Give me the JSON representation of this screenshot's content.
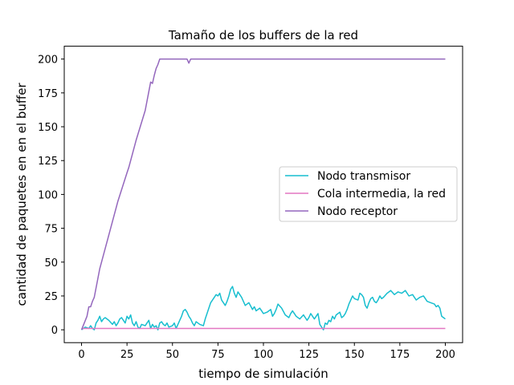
{
  "chart_data": {
    "type": "line",
    "title": "Tamaño de los buffers de la red",
    "xlabel": "tiempo de simulación",
    "ylabel": "cantidad de paquetes en en el buffer",
    "xlim": [
      -9.5,
      209.5
    ],
    "ylim": [
      -9.5,
      209.5
    ],
    "xticks": [
      0,
      25,
      50,
      75,
      100,
      125,
      150,
      175,
      200
    ],
    "yticks": [
      0,
      25,
      50,
      75,
      100,
      125,
      150,
      175,
      200
    ],
    "grid": false,
    "legend_position": "center-right",
    "series": [
      {
        "name": "Nodo transmisor",
        "color": "#17becf",
        "x": [
          0,
          2,
          4,
          5,
          6,
          7,
          8,
          9,
          10,
          11,
          12,
          13,
          15,
          17,
          18,
          19,
          20,
          21,
          22,
          23,
          24,
          25,
          26,
          27,
          28,
          29,
          30,
          31,
          32,
          33,
          35,
          36,
          37,
          38,
          39,
          40,
          41,
          42,
          43,
          44,
          45,
          46,
          47,
          48,
          50,
          51,
          52,
          53,
          54,
          55,
          56,
          57,
          58,
          59,
          60,
          61,
          62,
          63,
          65,
          67,
          68,
          69,
          70,
          71,
          72,
          73,
          74,
          75,
          76,
          77,
          78,
          79,
          80,
          81,
          82,
          83,
          84,
          85,
          86,
          87,
          88,
          90,
          92,
          94,
          95,
          96,
          98,
          100,
          102,
          104,
          105,
          106,
          107,
          108,
          110,
          112,
          114,
          115,
          116,
          118,
          120,
          122,
          124,
          125,
          126,
          127,
          128,
          129,
          130,
          131,
          132,
          133,
          134,
          135,
          136,
          137,
          138,
          139,
          140,
          142,
          143,
          144,
          145,
          146,
          147,
          148,
          149,
          150,
          152,
          153,
          154,
          155,
          156,
          157,
          158,
          159,
          160,
          161,
          162,
          163,
          164,
          165,
          166,
          168,
          170,
          172,
          174,
          176,
          178,
          180,
          182,
          184,
          186,
          188,
          190,
          192,
          194,
          195,
          196,
          197,
          198,
          199,
          200
        ],
        "y": [
          0,
          2,
          1,
          3,
          1,
          0,
          5,
          7,
          10,
          6,
          8,
          9,
          7,
          4,
          6,
          3,
          5,
          8,
          9,
          7,
          5,
          10,
          8,
          11,
          5,
          3,
          6,
          2,
          1,
          4,
          3,
          5,
          7,
          1,
          4,
          2,
          3,
          0,
          5,
          6,
          4,
          3,
          5,
          2,
          3,
          5,
          1,
          4,
          7,
          10,
          14,
          15,
          13,
          10,
          8,
          5,
          3,
          6,
          4,
          3,
          8,
          12,
          16,
          20,
          22,
          24,
          26,
          25,
          27,
          22,
          20,
          18,
          21,
          25,
          30,
          32,
          27,
          24,
          28,
          26,
          24,
          18,
          20,
          15,
          17,
          14,
          16,
          12,
          13,
          15,
          10,
          12,
          15,
          19,
          16,
          11,
          9,
          12,
          14,
          10,
          8,
          11,
          7,
          9,
          12,
          10,
          8,
          10,
          12,
          4,
          2,
          0,
          5,
          4,
          7,
          6,
          10,
          8,
          11,
          13,
          9,
          10,
          12,
          15,
          19,
          22,
          25,
          23,
          22,
          27,
          26,
          24,
          18,
          16,
          20,
          23,
          24,
          21,
          20,
          22,
          25,
          23,
          24,
          27,
          29,
          26,
          28,
          27,
          29,
          25,
          26,
          22,
          24,
          25,
          21,
          20,
          19,
          17,
          18,
          16,
          10,
          9,
          8
        ],
        "label_y": 10
      },
      {
        "name": "Cola intermedia, la red",
        "color": "#e377c2",
        "x": [
          0,
          200
        ],
        "y": [
          1,
          1
        ]
      },
      {
        "name": "Nodo receptor",
        "color": "#9467bd",
        "x": [
          0,
          3,
          4,
          5,
          6,
          7,
          10,
          15,
          20,
          25,
          26,
          30,
          35,
          38,
          39,
          40,
          41,
          42,
          43,
          45,
          50,
          55,
          58,
          59,
          60,
          70,
          80,
          100,
          150,
          200
        ],
        "y": [
          0,
          10,
          17,
          17,
          21,
          24,
          45,
          70,
          95,
          116,
          120,
          140,
          162,
          183,
          182,
          188,
          193,
          196,
          200,
          200,
          200,
          200,
          200,
          197,
          200,
          200,
          200,
          200,
          200,
          200
        ]
      }
    ]
  }
}
